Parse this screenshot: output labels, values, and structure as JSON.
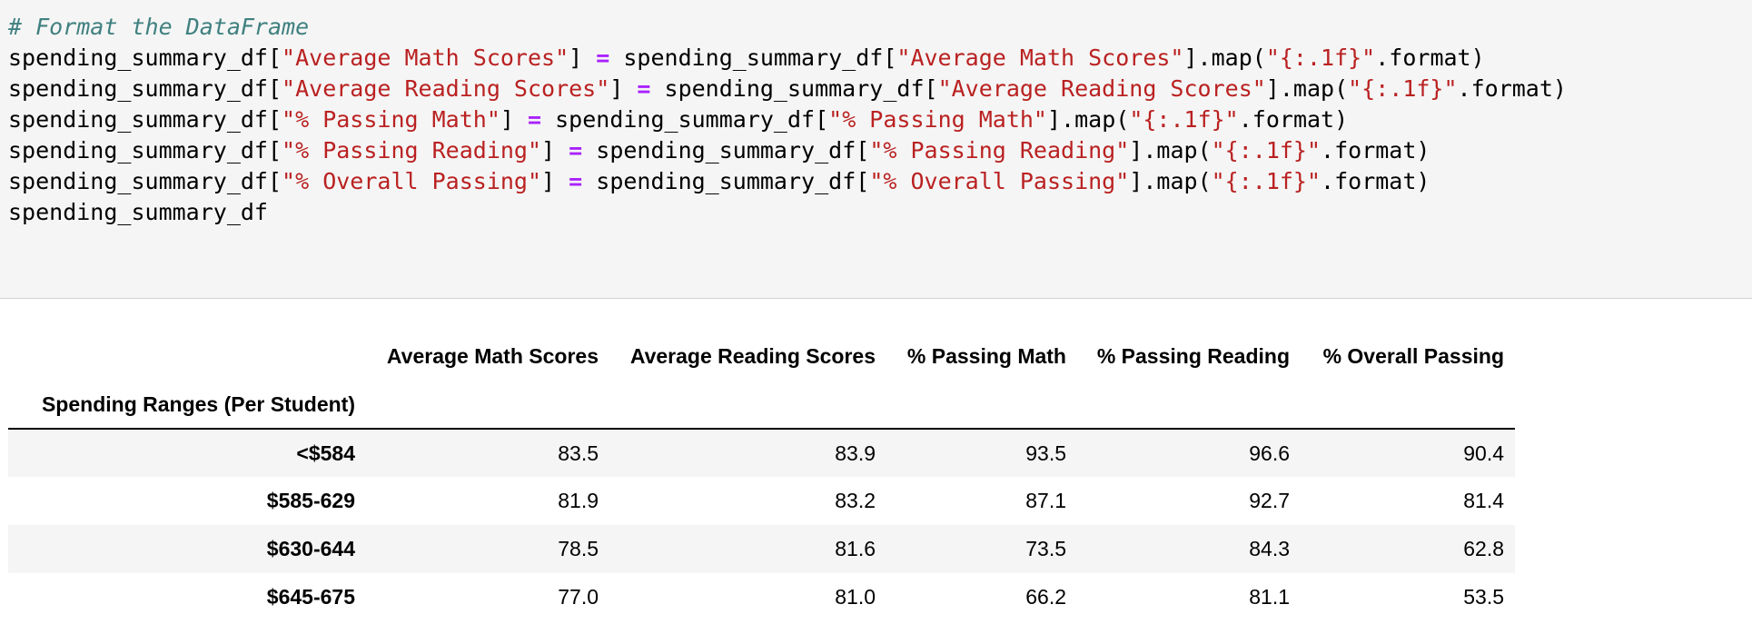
{
  "code_cell": {
    "comment": "# Format the DataFrame",
    "var": "spending_summary_df",
    "assign_op": "=",
    "map_call": ".map(",
    "fmt": "\"{:.1f}\"",
    "format_suffix": ".format)",
    "columns_quoted": [
      "\"Average Math Scores\"",
      "\"Average Reading Scores\"",
      "\"% Passing Math\"",
      "\"% Passing Reading\"",
      "\"% Overall Passing\""
    ]
  },
  "output_table": {
    "index_name": "Spending Ranges (Per Student)",
    "columns": [
      "Average Math Scores",
      "Average Reading Scores",
      "% Passing Math",
      "% Passing Reading",
      "% Overall Passing"
    ],
    "rows": [
      {
        "index": "<$584",
        "values": [
          "83.5",
          "83.9",
          "93.5",
          "96.6",
          "90.4"
        ]
      },
      {
        "index": "$585-629",
        "values": [
          "81.9",
          "83.2",
          "87.1",
          "92.7",
          "81.4"
        ]
      },
      {
        "index": "$630-644",
        "values": [
          "78.5",
          "81.6",
          "73.5",
          "84.3",
          "62.8"
        ]
      },
      {
        "index": "$645-675",
        "values": [
          "77.0",
          "81.0",
          "66.2",
          "81.1",
          "53.5"
        ]
      }
    ]
  }
}
